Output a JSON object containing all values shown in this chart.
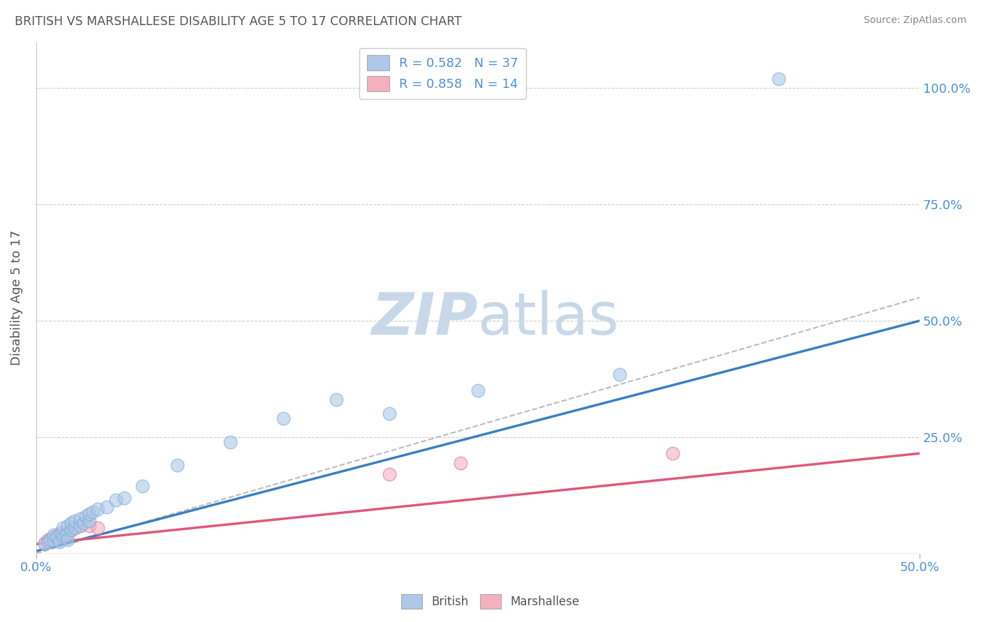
{
  "title": "BRITISH VS MARSHALLESE DISABILITY AGE 5 TO 17 CORRELATION CHART",
  "source": "Source: ZipAtlas.com",
  "ylabel": "Disability Age 5 to 17",
  "xlim": [
    0.0,
    0.5
  ],
  "ylim": [
    0.0,
    1.1
  ],
  "yticks": [
    0.0,
    0.25,
    0.5,
    0.75,
    1.0
  ],
  "ytick_labels": [
    "",
    "25.0%",
    "50.0%",
    "75.0%",
    "100.0%"
  ],
  "legend_british": "R = 0.582   N = 37",
  "legend_marshallese": "R = 0.858   N = 14",
  "british_color": "#adc8e8",
  "british_edge_color": "#7aaad4",
  "marshallese_color": "#f5b0c0",
  "marshallese_edge_color": "#e07090",
  "british_line_color": "#3a7fc1",
  "marshallese_line_color": "#e05878",
  "axis_label_color": "#4a90d9",
  "title_color": "#555555",
  "source_color": "#888888",
  "ylabel_color": "#555555",
  "british_points_x": [
    0.005,
    0.007,
    0.008,
    0.01,
    0.01,
    0.012,
    0.013,
    0.014,
    0.015,
    0.015,
    0.017,
    0.018,
    0.018,
    0.02,
    0.02,
    0.022,
    0.022,
    0.025,
    0.025,
    0.027,
    0.028,
    0.03,
    0.03,
    0.032,
    0.035,
    0.04,
    0.045,
    0.05,
    0.06,
    0.08,
    0.11,
    0.14,
    0.17,
    0.2,
    0.25,
    0.33,
    0.42
  ],
  "british_points_y": [
    0.02,
    0.025,
    0.03,
    0.028,
    0.04,
    0.035,
    0.025,
    0.045,
    0.038,
    0.055,
    0.04,
    0.03,
    0.06,
    0.05,
    0.065,
    0.055,
    0.07,
    0.06,
    0.075,
    0.065,
    0.08,
    0.07,
    0.085,
    0.09,
    0.095,
    0.1,
    0.115,
    0.12,
    0.145,
    0.19,
    0.24,
    0.29,
    0.33,
    0.3,
    0.35,
    0.385,
    1.02
  ],
  "marshallese_points_x": [
    0.005,
    0.007,
    0.01,
    0.012,
    0.015,
    0.017,
    0.02,
    0.022,
    0.025,
    0.03,
    0.035,
    0.2,
    0.24,
    0.36
  ],
  "marshallese_points_y": [
    0.022,
    0.03,
    0.035,
    0.04,
    0.04,
    0.045,
    0.05,
    0.055,
    0.06,
    0.06,
    0.055,
    0.17,
    0.195,
    0.215
  ],
  "british_line_x": [
    0.0,
    0.5
  ],
  "british_line_y": [
    0.005,
    0.5
  ],
  "marshallese_line_x": [
    0.0,
    0.5
  ],
  "marshallese_line_y": [
    0.02,
    0.215
  ],
  "diagonal_line_x": [
    0.0,
    0.5
  ],
  "diagonal_line_y": [
    0.0,
    0.55
  ],
  "background_color": "#ffffff",
  "grid_color": "#cccccc",
  "watermark_color": "#c8d8e8"
}
